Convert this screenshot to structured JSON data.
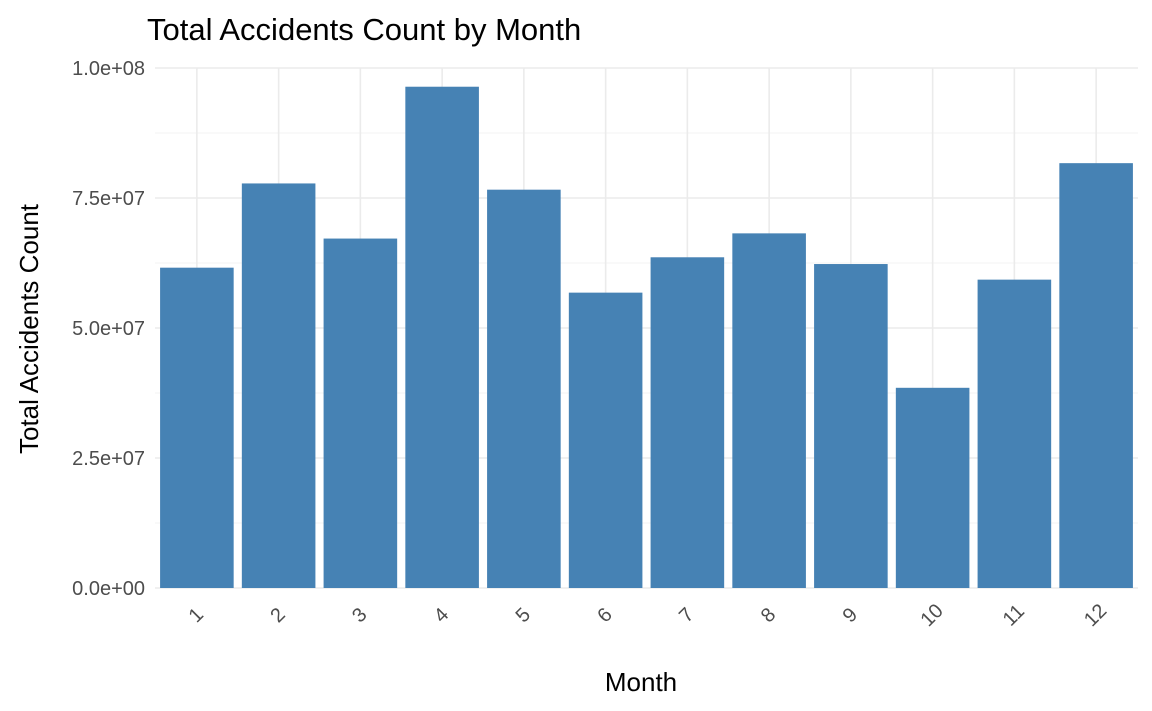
{
  "chart_data": {
    "type": "bar",
    "title": "Total Accidents Count by Month",
    "xlabel": "Month",
    "ylabel": "Total Accidents Count",
    "categories": [
      "1",
      "2",
      "3",
      "4",
      "5",
      "6",
      "7",
      "8",
      "9",
      "10",
      "11",
      "12"
    ],
    "values": [
      61600000,
      77800000,
      67200000,
      96400000,
      76600000,
      56800000,
      63600000,
      68200000,
      62300000,
      38500000,
      59300000,
      81700000
    ],
    "ylim": [
      0,
      100000000
    ],
    "yticks": [
      0,
      25000000,
      50000000,
      75000000,
      100000000
    ],
    "ytick_labels": [
      "0.0e+00",
      "2.5e+07",
      "5.0e+07",
      "7.5e+07",
      "1.0e+08"
    ],
    "grid": true,
    "bar_color": "#4682B4",
    "x_tick_rotation": "45 degrees",
    "legend": "none"
  }
}
